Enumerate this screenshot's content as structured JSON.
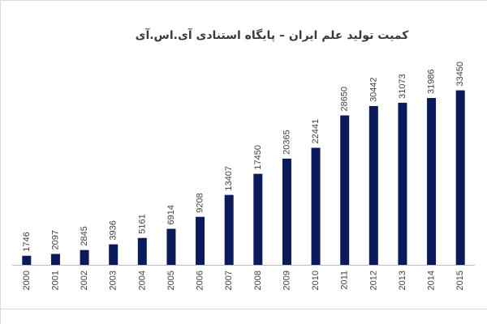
{
  "chart_data": {
    "type": "bar",
    "title": "کمیت تولید علم ایران  –  پایگاه استنادی آی.اس.آی",
    "xlabel": "",
    "ylabel": "",
    "categories": [
      "2000",
      "2001",
      "2002",
      "2003",
      "2004",
      "2005",
      "2006",
      "2007",
      "2008",
      "2009",
      "2010",
      "2011",
      "2012",
      "2013",
      "2014",
      "2015"
    ],
    "values": [
      1746,
      2097,
      2845,
      3936,
      5161,
      6914,
      9208,
      13407,
      17450,
      20365,
      22441,
      28650,
      30442,
      31073,
      31986,
      33450
    ],
    "ylim": [
      0,
      34000
    ],
    "grid": false,
    "legend": "none",
    "bar_color": "#0b1a5a",
    "axis_color": "#bfbfbf",
    "label_color": "#404040"
  }
}
